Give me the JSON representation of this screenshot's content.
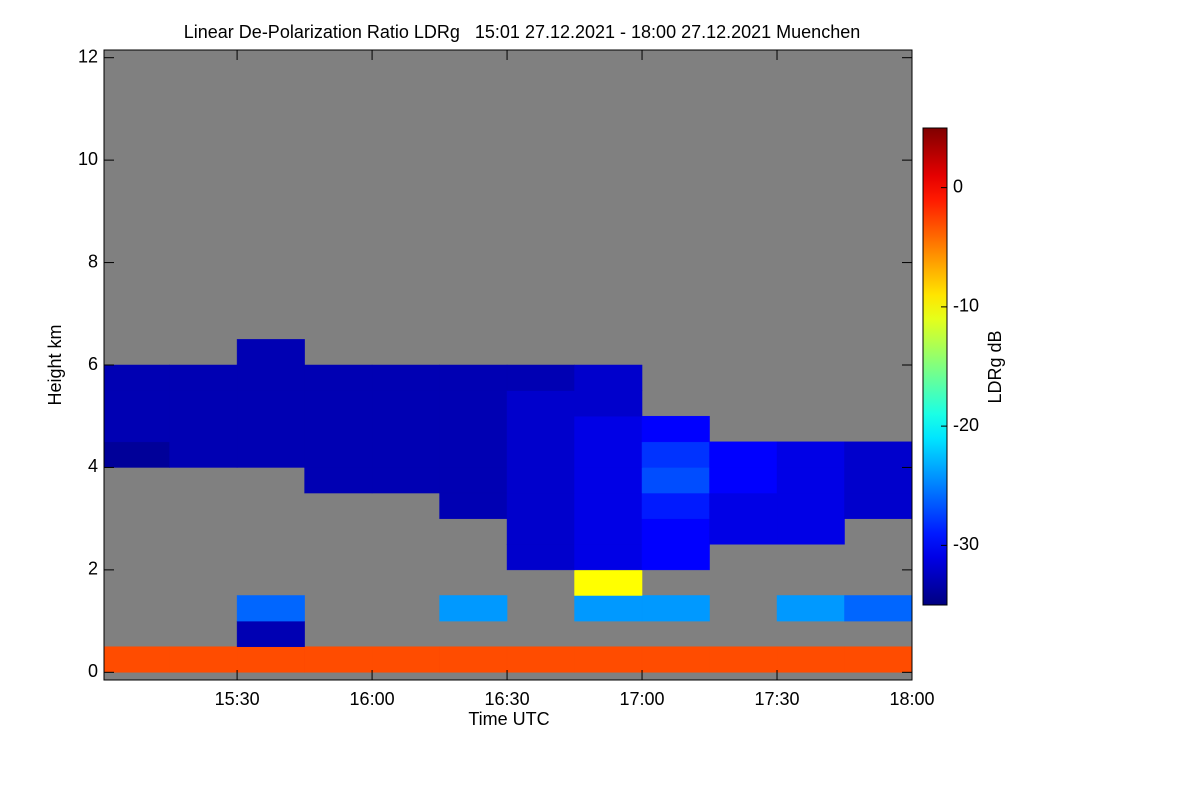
{
  "chart_data": {
    "type": "heatmap",
    "title": "Linear De-Polarization Ratio LDRg   15:01 27.12.2021 - 18:00 27.12.2021 Muenchen",
    "x_label": "Time UTC",
    "y_label": "Height km",
    "colorbar_label": "LDRg dB",
    "colormap": "jet",
    "background": "#808080",
    "xlim": [
      15.007,
      18.0
    ],
    "xticks": [
      {
        "value": 15.5,
        "label": "15:30"
      },
      {
        "value": 16.0,
        "label": "16:00"
      },
      {
        "value": 16.5,
        "label": "16:30"
      },
      {
        "value": 17.0,
        "label": "17:00"
      },
      {
        "value": 17.5,
        "label": "17:30"
      },
      {
        "value": 18.0,
        "label": "18:00"
      }
    ],
    "ylim": [
      -0.15,
      12.15
    ],
    "yticks": [
      0,
      2,
      4,
      6,
      8,
      10,
      12
    ],
    "zlim": [
      -35,
      5
    ],
    "zticks": [
      0,
      -10,
      -20,
      -30
    ],
    "x_bins": [
      15.0,
      15.25,
      15.5,
      15.75,
      16.0,
      16.25,
      16.5,
      16.75,
      17.0,
      17.25,
      17.5,
      17.75,
      18.0
    ],
    "y_bins": [
      0,
      0.5,
      1.0,
      1.5,
      2.0,
      2.5,
      3.0,
      3.5,
      4.0,
      4.5,
      5.0,
      5.5,
      6.0,
      6.5
    ],
    "z": [
      [
        -3,
        -3,
        -3,
        -3,
        -3,
        -3,
        -3,
        -3,
        -3,
        -3,
        -3,
        -3
      ],
      [
        null,
        null,
        -33,
        null,
        null,
        null,
        null,
        null,
        null,
        null,
        null,
        null
      ],
      [
        null,
        null,
        -26,
        null,
        null,
        -24,
        null,
        -24,
        -24,
        null,
        -24,
        -26
      ],
      [
        null,
        null,
        null,
        null,
        null,
        null,
        null,
        -10,
        null,
        null,
        null,
        null
      ],
      [
        null,
        null,
        null,
        null,
        null,
        null,
        -32,
        -31,
        -30,
        null,
        null,
        null
      ],
      [
        null,
        null,
        null,
        null,
        null,
        null,
        -32,
        -31,
        -30,
        -31,
        -31,
        null
      ],
      [
        null,
        null,
        null,
        null,
        null,
        -33,
        -32,
        -31,
        -29,
        -31,
        -31,
        -32
      ],
      [
        null,
        null,
        null,
        -33,
        -33,
        -33,
        -32,
        -31,
        -27,
        -30,
        -31,
        -32
      ],
      [
        -34,
        -33,
        -33,
        -33,
        -33,
        -33,
        -32,
        -31,
        -28,
        -30,
        -31,
        -32
      ],
      [
        -33,
        -33,
        -33,
        -33,
        -33,
        -33,
        -32,
        -31,
        -30,
        null,
        null,
        null
      ],
      [
        -33,
        -33,
        -33,
        -33,
        -33,
        -33,
        -32,
        -32,
        null,
        null,
        null,
        null
      ],
      [
        -33,
        -33,
        -33,
        -33,
        -33,
        -33,
        -33,
        -32,
        null,
        null,
        null,
        null
      ],
      [
        null,
        null,
        -33,
        null,
        null,
        null,
        null,
        null,
        null,
        null,
        null,
        null
      ]
    ]
  }
}
